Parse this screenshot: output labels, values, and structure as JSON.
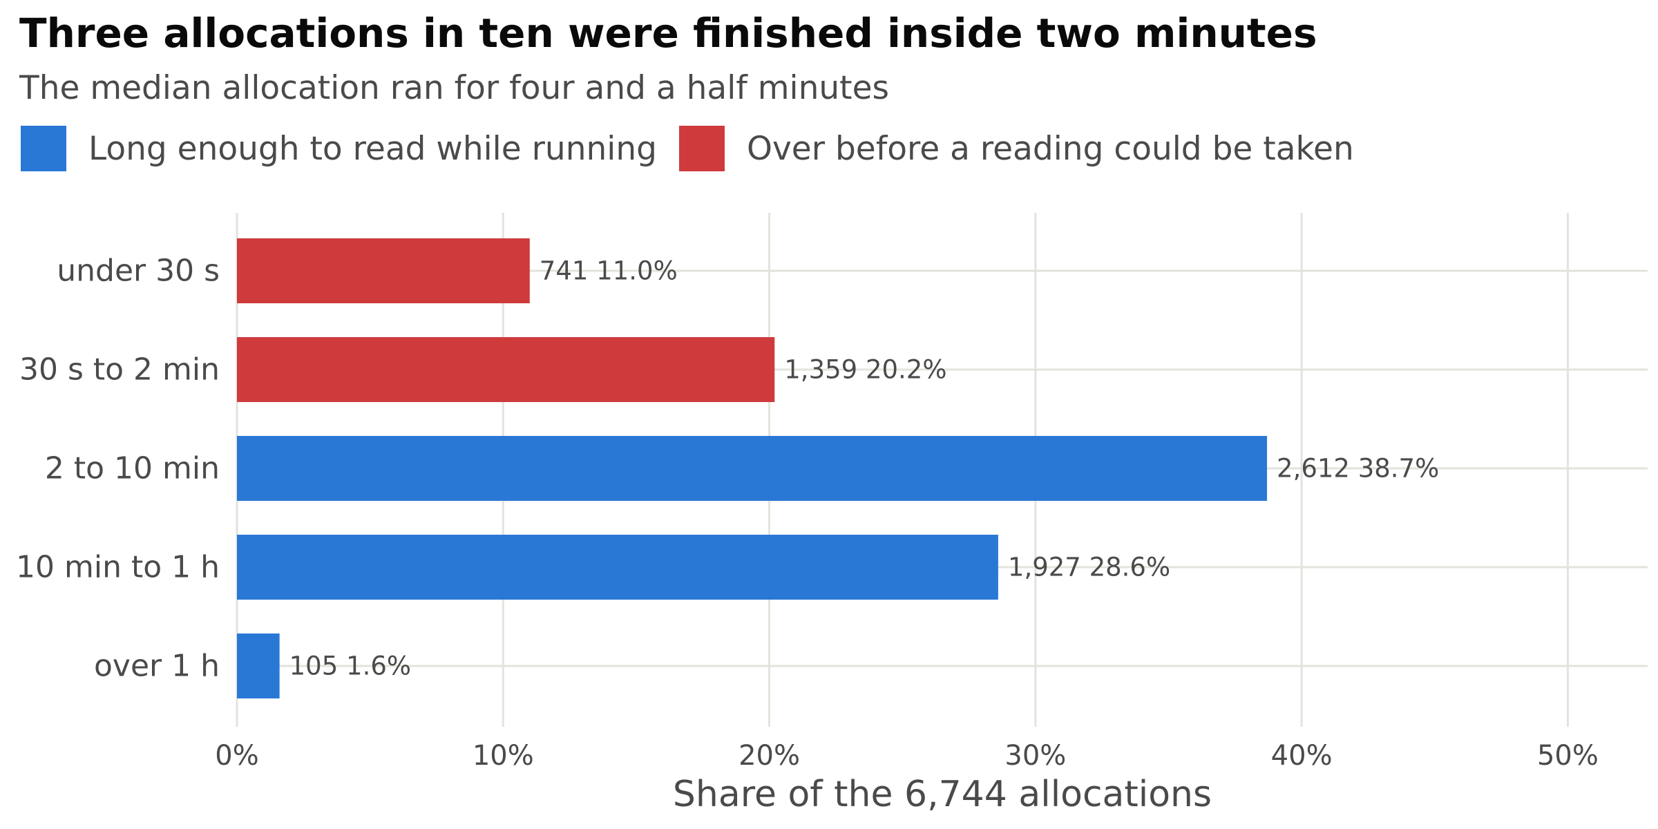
{
  "chart_data": {
    "type": "bar",
    "orientation": "horizontal",
    "title": "Three allocations in ten were finished inside two minutes",
    "subtitle": "The median allocation ran for four and a half minutes",
    "xlabel": "Share of the 6,744 allocations",
    "ylabel": "",
    "xlim": [
      0,
      53
    ],
    "xticks": [
      0,
      10,
      20,
      30,
      40,
      50
    ],
    "xtick_labels": [
      "0%",
      "10%",
      "20%",
      "30%",
      "40%",
      "50%"
    ],
    "grid": true,
    "legend": {
      "placement": "top-left",
      "entries": [
        {
          "label": "Long enough to read while running",
          "color": "#2a78d6"
        },
        {
          "label": "Over before a reading could be taken",
          "color": "#cf3b3c"
        }
      ]
    },
    "categories": [
      "under 30 s",
      "30 s to 2 min",
      "2 to 10 min",
      "10 min to 1 h",
      "over 1 h"
    ],
    "values": [
      11.0,
      20.2,
      38.7,
      28.6,
      1.6
    ],
    "counts": [
      "741",
      "1,359",
      "2,612",
      "1,927",
      "105"
    ],
    "value_labels": [
      "11.0%",
      "20.2%",
      "38.7%",
      "28.6%",
      "1.6%"
    ],
    "bar_colors": [
      "#cf3b3c",
      "#cf3b3c",
      "#2a78d6",
      "#2a78d6",
      "#2a78d6"
    ]
  }
}
